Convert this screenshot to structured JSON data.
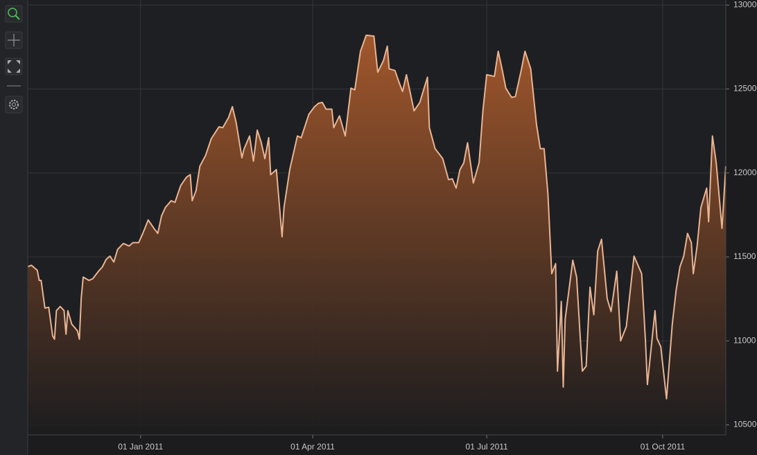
{
  "chart_data": {
    "type": "area",
    "color": "#e9b493",
    "fill": "#a85a2c",
    "grid": true,
    "xlim": [
      "2010-11-03",
      "2011-11-03"
    ],
    "ylim": [
      10440,
      13030
    ],
    "xticks": [
      {
        "value": "2011-01-01",
        "label": "01 Jan 2011"
      },
      {
        "value": "2011-04-01",
        "label": "01 Apr 2011"
      },
      {
        "value": "2011-07-01",
        "label": "01 Jul 2011"
      },
      {
        "value": "2011-10-01",
        "label": "01 Oct 2011"
      }
    ],
    "yticks": [
      10500,
      11000,
      11500,
      12000,
      12500,
      13000
    ],
    "x": [
      "2010-11-03",
      "2010-11-05",
      "2010-11-08",
      "2010-11-09",
      "2010-11-10",
      "2010-11-12",
      "2010-11-14",
      "2010-11-16",
      "2010-11-17",
      "2010-11-18",
      "2010-11-20",
      "2010-11-22",
      "2010-11-23",
      "2010-11-24",
      "2010-11-26",
      "2010-11-29",
      "2010-11-30",
      "2010-12-01",
      "2010-12-02",
      "2010-12-05",
      "2010-12-07",
      "2010-12-10",
      "2010-12-12",
      "2010-12-14",
      "2010-12-16",
      "2010-12-18",
      "2010-12-20",
      "2010-12-23",
      "2010-12-26",
      "2010-12-28",
      "2010-12-31",
      "2011-01-02",
      "2011-01-05",
      "2011-01-08",
      "2011-01-10",
      "2011-01-12",
      "2011-01-14",
      "2011-01-17",
      "2011-01-19",
      "2011-01-22",
      "2011-01-25",
      "2011-01-27",
      "2011-01-28",
      "2011-01-30",
      "2011-02-01",
      "2011-02-04",
      "2011-02-07",
      "2011-02-09",
      "2011-02-11",
      "2011-02-13",
      "2011-02-16",
      "2011-02-18",
      "2011-02-20",
      "2011-02-23",
      "2011-02-24",
      "2011-02-27",
      "2011-03-01",
      "2011-03-03",
      "2011-03-05",
      "2011-03-07",
      "2011-03-09",
      "2011-03-10",
      "2011-03-13",
      "2011-03-16",
      "2011-03-17",
      "2011-03-20",
      "2011-03-24",
      "2011-03-26",
      "2011-03-30",
      "2011-04-02",
      "2011-04-04",
      "2011-04-06",
      "2011-04-08",
      "2011-04-11",
      "2011-04-12",
      "2011-04-15",
      "2011-04-18",
      "2011-04-21",
      "2011-04-23",
      "2011-04-26",
      "2011-04-29",
      "2011-05-03",
      "2011-05-05",
      "2011-05-08",
      "2011-05-10",
      "2011-05-11",
      "2011-05-14",
      "2011-05-16",
      "2011-05-18",
      "2011-05-20",
      "2011-05-24",
      "2011-05-27",
      "2011-05-31",
      "2011-06-01",
      "2011-06-04",
      "2011-06-08",
      "2011-06-11",
      "2011-06-13",
      "2011-06-15",
      "2011-06-17",
      "2011-06-19",
      "2011-06-21",
      "2011-06-24",
      "2011-06-27",
      "2011-06-29",
      "2011-07-01",
      "2011-07-05",
      "2011-07-07",
      "2011-07-09",
      "2011-07-11",
      "2011-07-14",
      "2011-07-16",
      "2011-07-19",
      "2011-07-21",
      "2011-07-24",
      "2011-07-27",
      "2011-07-29",
      "2011-07-31",
      "2011-08-02",
      "2011-08-04",
      "2011-08-06",
      "2011-08-07",
      "2011-08-09",
      "2011-08-10",
      "2011-08-11",
      "2011-08-15",
      "2011-08-17",
      "2011-08-19",
      "2011-08-20",
      "2011-08-22",
      "2011-08-24",
      "2011-08-26",
      "2011-08-28",
      "2011-08-30",
      "2011-09-02",
      "2011-09-04",
      "2011-09-07",
      "2011-09-09",
      "2011-09-12",
      "2011-09-16",
      "2011-09-20",
      "2011-09-22",
      "2011-09-23",
      "2011-09-25",
      "2011-09-27",
      "2011-09-28",
      "2011-09-30",
      "2011-10-03",
      "2011-10-06",
      "2011-10-08",
      "2011-10-10",
      "2011-10-12",
      "2011-10-14",
      "2011-10-16",
      "2011-10-17",
      "2011-10-19",
      "2011-10-21",
      "2011-10-24",
      "2011-10-25",
      "2011-10-27",
      "2011-10-29",
      "2011-11-01",
      "2011-11-03"
    ],
    "values": [
      11442,
      11450,
      11420,
      11360,
      11360,
      11195,
      11200,
      11030,
      11010,
      11180,
      11205,
      11180,
      11040,
      11180,
      11100,
      11060,
      11010,
      11255,
      11380,
      11360,
      11370,
      11415,
      11440,
      11485,
      11505,
      11470,
      11545,
      11580,
      11565,
      11585,
      11585,
      11635,
      11720,
      11670,
      11640,
      11745,
      11795,
      11835,
      11825,
      11925,
      11975,
      11990,
      11835,
      11895,
      12040,
      12105,
      12205,
      12240,
      12275,
      12270,
      12330,
      12395,
      12300,
      12090,
      12140,
      12220,
      12070,
      12255,
      12185,
      12085,
      12210,
      11990,
      12020,
      11620,
      11795,
      12020,
      12220,
      12210,
      12350,
      12395,
      12415,
      12420,
      12380,
      12380,
      12270,
      12340,
      12220,
      12505,
      12495,
      12725,
      12820,
      12815,
      12600,
      12670,
      12755,
      12620,
      12610,
      12545,
      12485,
      12585,
      12370,
      12420,
      12570,
      12270,
      12145,
      12085,
      11960,
      11965,
      11910,
      12020,
      12060,
      12180,
      11940,
      12060,
      12370,
      12585,
      12575,
      12725,
      12620,
      12505,
      12450,
      12455,
      12610,
      12725,
      12620,
      12290,
      12145,
      12145,
      11875,
      11400,
      11460,
      10820,
      11235,
      10725,
      11130,
      11480,
      11380,
      11000,
      10820,
      10850,
      11320,
      11155,
      11535,
      11605,
      11250,
      11175,
      11415,
      11000,
      11085,
      11505,
      11400,
      11000,
      10740,
      10960,
      11180,
      11015,
      10965,
      10655,
      11100,
      11300,
      11440,
      11505,
      11640,
      11585,
      11400,
      11565,
      11795,
      11910,
      11710,
      12220,
      12060,
      11670,
      12040
    ]
  }
}
